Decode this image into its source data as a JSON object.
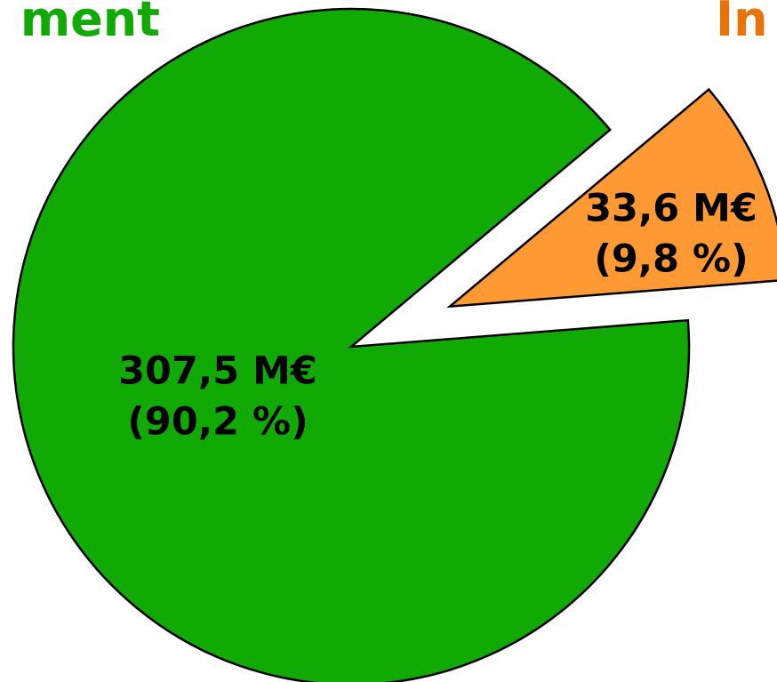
{
  "chart_data": {
    "type": "pie",
    "categories": [
      "ment",
      "In"
    ],
    "values": [
      307.5,
      33.6
    ],
    "value_labels": [
      "307,5 M€",
      "33,6 M€"
    ],
    "percentages": [
      90.2,
      9.8
    ],
    "percentage_labels": [
      "(90,2 %)",
      "(9,8 %)"
    ],
    "colors": [
      "#11aa05",
      "#ff9933"
    ],
    "label_colors": [
      "#11aa05",
      "#e8730a"
    ]
  }
}
